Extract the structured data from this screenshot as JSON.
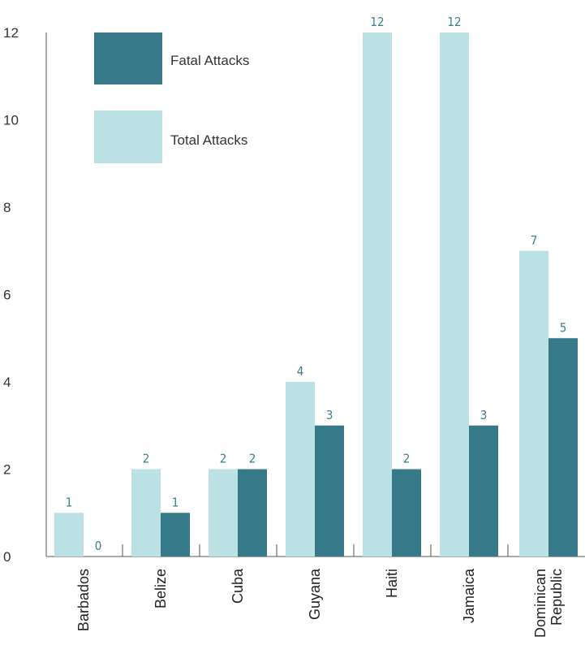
{
  "chart_data": {
    "type": "bar",
    "title": "",
    "xlabel": "",
    "ylabel": "",
    "ylim": [
      0,
      12
    ],
    "yticks": [
      "0",
      "2",
      "4",
      "6",
      "8",
      "10",
      "12"
    ],
    "categories": [
      "Barbados",
      "Belize",
      "Cuba",
      "Guyana",
      "Haiti",
      "Jamaica",
      "Dominican Republic"
    ],
    "category_lines": [
      [
        "Barbados"
      ],
      [
        "Belize"
      ],
      [
        "Cuba"
      ],
      [
        "Guyana"
      ],
      [
        "Haiti"
      ],
      [
        "Jamaica"
      ],
      [
        "Dominican",
        "Republic"
      ]
    ],
    "series": [
      {
        "name": "Total Attacks",
        "color": "#bce1e4",
        "values": [
          1,
          2,
          2,
          4,
          12,
          12,
          7
        ]
      },
      {
        "name": "Fatal Attacks",
        "color": "#367a8a",
        "values": [
          0,
          1,
          2,
          3,
          2,
          3,
          5
        ]
      }
    ],
    "legend": {
      "placement": "top-left",
      "order": [
        "Fatal Attacks",
        "Total Attacks"
      ]
    },
    "grid": false
  }
}
